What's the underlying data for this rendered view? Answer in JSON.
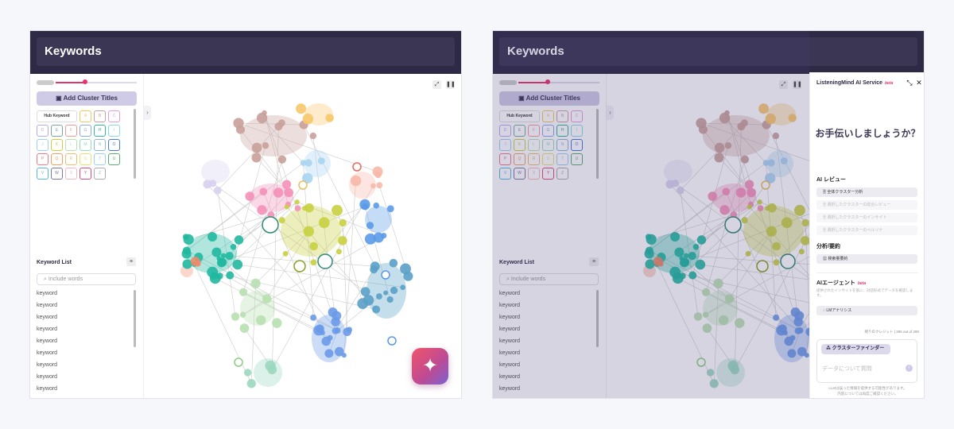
{
  "header": {
    "title": "Keywords"
  },
  "sidebar": {
    "add_cluster_titles": "Add Cluster Titles",
    "hub_keyword": "Hub Keyword",
    "clusters": [
      {
        "l": "A",
        "c": "#f3c85a"
      },
      {
        "l": "B",
        "c": "#c9a09a"
      },
      {
        "l": "C",
        "c": "#e59be0"
      },
      {
        "l": "D",
        "c": "#b8a8f0"
      },
      {
        "l": "E",
        "c": "#7aa8a0"
      },
      {
        "l": "F",
        "c": "#f29a9a"
      },
      {
        "l": "G",
        "c": "#8aa8f0"
      },
      {
        "l": "H",
        "c": "#2fb89a"
      },
      {
        "l": "I",
        "c": "#8ad8e0"
      },
      {
        "l": "J",
        "c": "#9ad0f0"
      },
      {
        "l": "K",
        "c": "#c8d040"
      },
      {
        "l": "L",
        "c": "#b8e0b0"
      },
      {
        "l": "M",
        "c": "#9ad8c0"
      },
      {
        "l": "N",
        "c": "#8ab8d8"
      },
      {
        "l": "O",
        "c": "#4a7ad8"
      },
      {
        "l": "P",
        "c": "#f07a8a"
      },
      {
        "l": "Q",
        "c": "#f0a060"
      },
      {
        "l": "R",
        "c": "#e8c070"
      },
      {
        "l": "S",
        "c": "#e8e070"
      },
      {
        "l": "T",
        "c": "#9ad0f0"
      },
      {
        "l": "U",
        "c": "#58b070"
      },
      {
        "l": "V",
        "c": "#58b8e0"
      },
      {
        "l": "W",
        "c": "#7a7aa0"
      },
      {
        "l": "X",
        "c": "#f8b8b8"
      },
      {
        "l": "Y",
        "c": "#e04a7a"
      },
      {
        "l": "Z",
        "c": "#aaaaaa"
      }
    ],
    "keyword_list_title": "Keyword List",
    "search_placeholder": "Include words",
    "keywords": [
      "keyword",
      "keyword",
      "keyword",
      "keyword",
      "keyword",
      "keyword",
      "keyword",
      "keyword",
      "keyword"
    ]
  },
  "ai_panel": {
    "title": "ListeningMind AI Service",
    "beta": "beta",
    "greeting": "お手伝いしましょうか？",
    "review_title": "AI レビュー",
    "review_items": [
      "全体クラスター分析",
      "選択したクラスターの総合レビュー",
      "選択したクラスターのインサイト",
      "選択したクラスターのペルソナ"
    ],
    "summary_title": "分析/要約",
    "summary_items": [
      "検索量要約"
    ],
    "agent_title": "AIエージェント",
    "agent_beta": "beta",
    "agent_desc": "提供されたインサイトを基に、対話形式でデータを確認します。",
    "agent_items": [
      "LMアナリシス"
    ],
    "credits": "残りのクレジット | 295 out of 280",
    "cluster_finder": "クラスターファインダー",
    "input_placeholder": "データについて質問",
    "footer_1": "LLMは誤った情報を提供する可能性があります。",
    "footer_2": "内容については再度ご確認ください。"
  },
  "graph": {
    "clusters": [
      {
        "color": "#c9a09a"
      },
      {
        "color": "#f8c66a"
      },
      {
        "color": "#a8d4f2"
      },
      {
        "color": "#d8d0f0"
      },
      {
        "color": "#f490b8"
      },
      {
        "color": "#f8b8a8"
      },
      {
        "color": "#c8d040"
      },
      {
        "color": "#5a9ae8"
      },
      {
        "color": "#20b8a0"
      },
      {
        "color": "#5aa0c8"
      },
      {
        "color": "#b8e0b0"
      },
      {
        "color": "#6a9ae8"
      },
      {
        "color": "#9ad8c0"
      },
      {
        "color": "#f08a6a"
      }
    ]
  }
}
